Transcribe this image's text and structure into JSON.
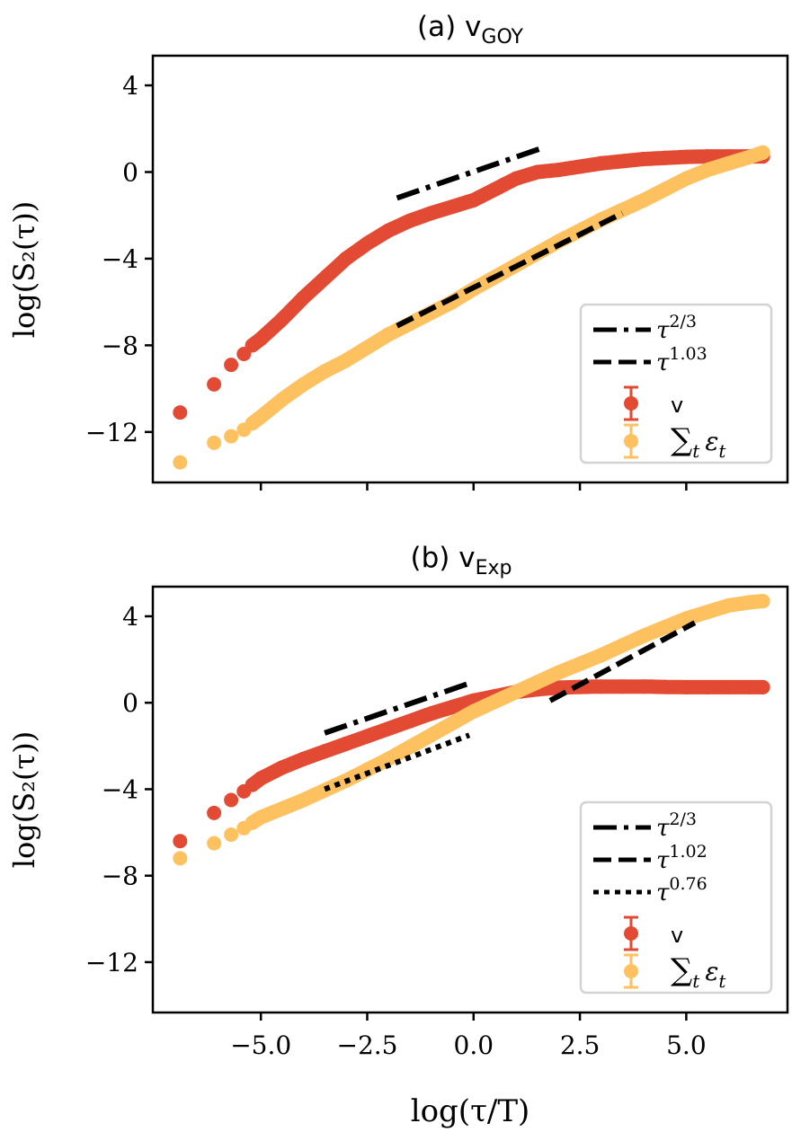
{
  "chart_data": [
    {
      "type": "scatter",
      "panel": "a",
      "title": "(a) v",
      "title_subscript": "GOY",
      "xlabel": "log(τ/T)",
      "ylabel": "log(S₂(τ))",
      "xlim": [
        -7.54,
        7.38
      ],
      "ylim": [
        -14.33,
        5.37
      ],
      "xticks": [
        -5.0,
        -2.5,
        0.0,
        2.5,
        5.0
      ],
      "xtick_labels": [
        "−5.0",
        "−2.5",
        "0.0",
        "2.5",
        "5.0"
      ],
      "xtick_labels_visible": false,
      "yticks": [
        4,
        0,
        -4,
        -8,
        -12
      ],
      "ytick_labels": [
        "4",
        "0",
        "−4",
        "−8",
        "−12"
      ],
      "grid": false,
      "legend_position": "lower-right",
      "series": [
        {
          "name": "v",
          "legend_label": "v",
          "color": "#e34a33",
          "x": [
            -6.9,
            -6.1,
            -5.7,
            -5.4,
            -5.2,
            -5.0,
            -4.5,
            -4.0,
            -3.5,
            -3.0,
            -2.5,
            -2.0,
            -1.5,
            -1.0,
            -0.5,
            0.0,
            0.5,
            1.0,
            1.5,
            2.0,
            2.5,
            3.0,
            3.5,
            4.0,
            4.5,
            5.0,
            5.5,
            6.0,
            6.5,
            6.8
          ],
          "y": [
            -11.1,
            -9.8,
            -8.9,
            -8.4,
            -8.0,
            -7.7,
            -6.8,
            -5.8,
            -4.9,
            -4.0,
            -3.3,
            -2.7,
            -2.25,
            -1.9,
            -1.6,
            -1.3,
            -0.8,
            -0.3,
            0.0,
            0.1,
            0.25,
            0.4,
            0.5,
            0.6,
            0.65,
            0.7,
            0.72,
            0.72,
            0.72,
            0.72
          ]
        },
        {
          "name": "sum_t epsilon_t",
          "legend_label": "∑t εt",
          "color": "#fdc160",
          "x": [
            -6.9,
            -6.1,
            -5.7,
            -5.4,
            -5.2,
            -5.0,
            -4.5,
            -4.0,
            -3.5,
            -3.0,
            -2.5,
            -2.0,
            -1.5,
            -1.0,
            -0.5,
            0.0,
            0.5,
            1.0,
            1.5,
            2.0,
            2.5,
            3.0,
            3.5,
            4.0,
            4.5,
            5.0,
            5.5,
            6.0,
            6.5,
            6.8
          ],
          "y": [
            -13.4,
            -12.5,
            -12.2,
            -11.9,
            -11.6,
            -11.3,
            -10.5,
            -9.8,
            -9.2,
            -8.7,
            -8.1,
            -7.5,
            -7.0,
            -6.5,
            -6.0,
            -5.4,
            -4.85,
            -4.3,
            -3.75,
            -3.2,
            -2.7,
            -2.2,
            -1.75,
            -1.3,
            -0.8,
            -0.3,
            0.1,
            0.4,
            0.7,
            0.9
          ]
        }
      ],
      "reference_lines": [
        {
          "label": "τ^2/3",
          "base": "τ",
          "exponent": "2/3",
          "style": "dashdot",
          "x": [
            -1.8,
            1.6
          ],
          "y": [
            -1.2,
            1.1
          ]
        },
        {
          "label": "τ^1.03",
          "base": "τ",
          "exponent": "1.03",
          "style": "dashed",
          "x": [
            -1.8,
            3.5
          ],
          "y": [
            -7.1,
            -1.9
          ]
        }
      ]
    },
    {
      "type": "scatter",
      "panel": "b",
      "title": "(b) v",
      "title_subscript": "Exp",
      "xlabel": "log(τ/T)",
      "ylabel": "log(S₂(τ))",
      "xlim": [
        -7.54,
        7.38
      ],
      "ylim": [
        -14.33,
        5.37
      ],
      "xticks": [
        -5.0,
        -2.5,
        0.0,
        2.5,
        5.0
      ],
      "xtick_labels": [
        "−5.0",
        "−2.5",
        "0.0",
        "2.5",
        "5.0"
      ],
      "xtick_labels_visible": true,
      "yticks": [
        4,
        0,
        -4,
        -8,
        -12
      ],
      "ytick_labels": [
        "4",
        "0",
        "−4",
        "−8",
        "−12"
      ],
      "grid": false,
      "legend_position": "lower-right",
      "series": [
        {
          "name": "v",
          "legend_label": "v",
          "color": "#e34a33",
          "x": [
            -6.9,
            -6.1,
            -5.7,
            -5.4,
            -5.2,
            -5.0,
            -4.5,
            -4.0,
            -3.5,
            -3.0,
            -2.5,
            -2.0,
            -1.5,
            -1.0,
            -0.5,
            0.0,
            0.5,
            1.0,
            1.5,
            2.0,
            2.5,
            3.0,
            3.5,
            4.0,
            4.5,
            5.0,
            5.5,
            6.0,
            6.5,
            6.8
          ],
          "y": [
            -6.4,
            -5.1,
            -4.5,
            -4.1,
            -3.8,
            -3.5,
            -3.0,
            -2.6,
            -2.25,
            -1.9,
            -1.55,
            -1.2,
            -0.85,
            -0.5,
            -0.2,
            0.1,
            0.3,
            0.5,
            0.62,
            0.7,
            0.73,
            0.75,
            0.75,
            0.75,
            0.73,
            0.72,
            0.72,
            0.72,
            0.72,
            0.72
          ]
        },
        {
          "name": "sum_t epsilon_t",
          "legend_label": "∑t εt",
          "color": "#fdc160",
          "x": [
            -6.9,
            -6.1,
            -5.7,
            -5.4,
            -5.2,
            -5.0,
            -4.5,
            -4.0,
            -3.5,
            -3.0,
            -2.5,
            -2.0,
            -1.5,
            -1.0,
            -0.5,
            0.0,
            0.5,
            1.0,
            1.5,
            2.0,
            2.5,
            3.0,
            3.5,
            4.0,
            4.5,
            5.0,
            5.5,
            6.0,
            6.5,
            6.8
          ],
          "y": [
            -7.2,
            -6.5,
            -6.1,
            -5.8,
            -5.55,
            -5.3,
            -4.9,
            -4.5,
            -4.05,
            -3.6,
            -3.1,
            -2.6,
            -2.05,
            -1.5,
            -0.95,
            -0.4,
            0.05,
            0.5,
            0.95,
            1.4,
            1.8,
            2.2,
            2.65,
            3.1,
            3.5,
            3.9,
            4.2,
            4.5,
            4.65,
            4.7
          ]
        }
      ],
      "reference_lines": [
        {
          "label": "τ^2/3",
          "base": "τ",
          "exponent": "2/3",
          "style": "dashdot",
          "x": [
            -3.5,
            -0.1
          ],
          "y": [
            -1.4,
            0.9
          ]
        },
        {
          "label": "τ^1.02",
          "base": "τ",
          "exponent": "1.02",
          "style": "dashed",
          "x": [
            1.8,
            5.2
          ],
          "y": [
            0.1,
            3.7
          ]
        },
        {
          "label": "τ^0.76",
          "base": "τ",
          "exponent": "0.76",
          "style": "dotted",
          "x": [
            -3.5,
            -0.1
          ],
          "y": [
            -4.0,
            -1.5
          ]
        }
      ]
    }
  ]
}
